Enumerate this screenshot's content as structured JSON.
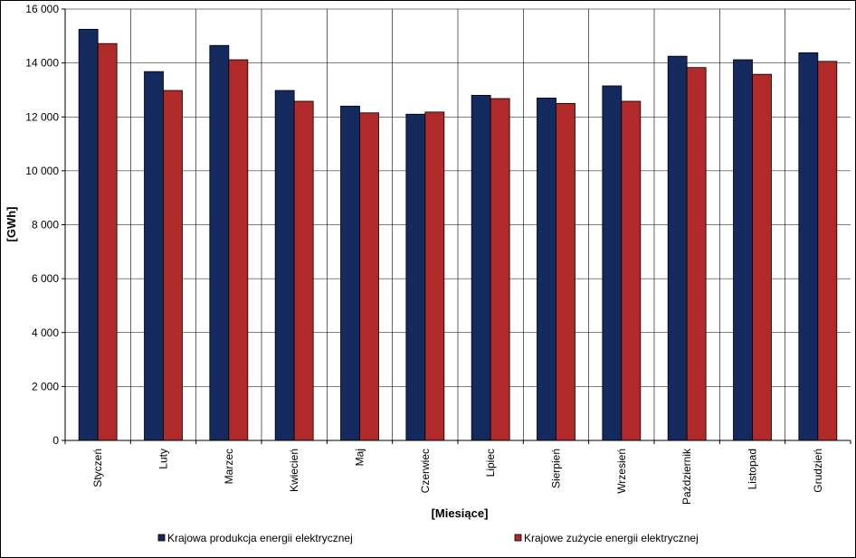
{
  "chart_data": {
    "type": "bar",
    "title": "",
    "xlabel": "[Miesiące]",
    "ylabel": "[GWh]",
    "ylim": [
      0,
      16000
    ],
    "yticks": [
      0,
      2000,
      4000,
      6000,
      8000,
      10000,
      12000,
      14000,
      16000
    ],
    "ytick_labels": [
      "0",
      "2 000",
      "4 000",
      "6 000",
      "8 000",
      "10 000",
      "12 000",
      "14 000",
      "16 000"
    ],
    "grid": true,
    "legend_position": "bottom",
    "categories": [
      "Styczeń",
      "Luty",
      "Marzec",
      "Kwiecień",
      "Maj",
      "Czerwiec",
      "Lipiec",
      "Sierpień",
      "Wrzesień",
      "Październik",
      "Listopad",
      "Grudzień"
    ],
    "series": [
      {
        "name": "Krajowa produkcja energii elektrycznej",
        "color": "#14295e",
        "values": [
          15250,
          13680,
          14650,
          12980,
          12400,
          12100,
          12800,
          12700,
          13150,
          14250,
          14120,
          14380
        ]
      },
      {
        "name": "Krajowe zużycie energii elektrycznej",
        "color": "#b02a2a",
        "values": [
          14720,
          12980,
          14120,
          12580,
          12150,
          12180,
          12680,
          12500,
          12580,
          13830,
          13580,
          14060
        ]
      }
    ]
  }
}
